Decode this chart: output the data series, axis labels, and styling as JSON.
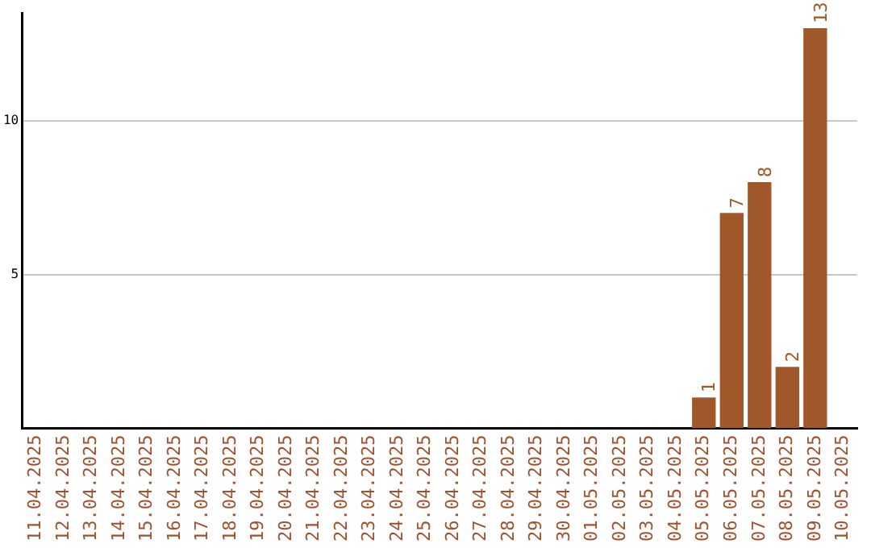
{
  "chart_data": {
    "type": "bar",
    "categories": [
      "11.04.2025",
      "12.04.2025",
      "13.04.2025",
      "14.04.2025",
      "15.04.2025",
      "16.04.2025",
      "17.04.2025",
      "18.04.2025",
      "19.04.2025",
      "20.04.2025",
      "21.04.2025",
      "22.04.2025",
      "23.04.2025",
      "24.04.2025",
      "25.04.2025",
      "26.04.2025",
      "27.04.2025",
      "28.04.2025",
      "29.04.2025",
      "30.04.2025",
      "01.05.2025",
      "02.05.2025",
      "03.05.2025",
      "04.05.2025",
      "05.05.2025",
      "06.05.2025",
      "07.05.2025",
      "08.05.2025",
      "09.05.2025",
      "10.05.2025"
    ],
    "values": [
      0,
      0,
      0,
      0,
      0,
      0,
      0,
      0,
      0,
      0,
      0,
      0,
      0,
      0,
      0,
      0,
      0,
      0,
      0,
      0,
      0,
      0,
      0,
      0,
      1,
      7,
      8,
      2,
      13,
      0
    ],
    "value_labels": [
      null,
      null,
      null,
      null,
      null,
      null,
      null,
      null,
      null,
      null,
      null,
      null,
      null,
      null,
      null,
      null,
      null,
      null,
      null,
      null,
      null,
      null,
      null,
      null,
      "1",
      "7",
      "8",
      "2",
      "13",
      null
    ],
    "color": "#a0582a",
    "ylim": [
      0,
      13.5
    ],
    "yticks": [
      5,
      10
    ],
    "grid": "y",
    "legend": false
  }
}
